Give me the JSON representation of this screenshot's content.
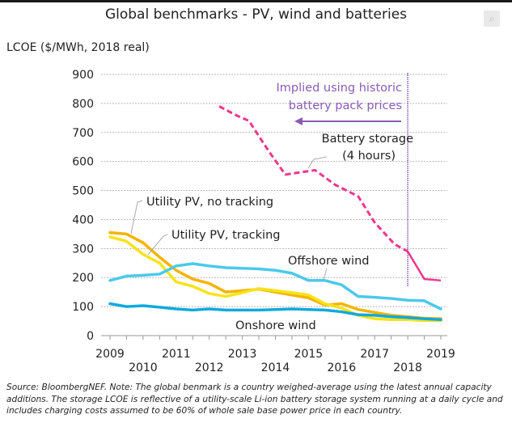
{
  "chart_data": {
    "type": "line",
    "title": "Global benchmarks - PV, wind and batteries",
    "ylabel": "LCOE ($/MWh, 2018 real)",
    "xlabel": "",
    "ylim": [
      0,
      900
    ],
    "xlim": [
      2009,
      2019
    ],
    "yticks": [
      0,
      100,
      200,
      300,
      400,
      500,
      600,
      700,
      800,
      900
    ],
    "xticks": [
      "2009",
      "2010",
      "2011",
      "2012",
      "2013",
      "2014",
      "2015",
      "2016",
      "2017",
      "2018",
      "2019"
    ],
    "grid": true,
    "series": [
      {
        "name": "Battery storage (4 hours)",
        "label": "Battery storage\n(4 hours)",
        "color": "#f0368e",
        "style": "dashed-then-solid",
        "solid_from_x": 2018.0,
        "x": [
          2012.3,
          2012.8,
          2013.2,
          2013.8,
          2014.3,
          2015.2,
          2015.8,
          2016.5,
          2017.0,
          2017.6,
          2018.0,
          2018.5,
          2019.0
        ],
        "y": [
          790,
          760,
          740,
          635,
          555,
          570,
          520,
          480,
          390,
          315,
          290,
          195,
          190
        ]
      },
      {
        "name": "Utility PV, no tracking",
        "label": "Utility PV, no tracking",
        "color": "#f5b400",
        "x": [
          2009.0,
          2009.5,
          2010.0,
          2010.5,
          2011.0,
          2011.5,
          2012.0,
          2012.5,
          2013.0,
          2013.5,
          2014.0,
          2014.5,
          2015.0,
          2015.5,
          2016.0,
          2016.5,
          2017.0,
          2017.5,
          2018.0,
          2018.5,
          2019.0
        ],
        "y": [
          355,
          350,
          320,
          270,
          225,
          195,
          180,
          150,
          155,
          160,
          150,
          140,
          130,
          105,
          110,
          90,
          80,
          70,
          65,
          60,
          58
        ]
      },
      {
        "name": "Utility PV, tracking",
        "label": "Utility PV, tracking",
        "color": "#f7e31a",
        "x": [
          2009.0,
          2009.5,
          2010.0,
          2010.5,
          2011.0,
          2011.5,
          2012.0,
          2012.5,
          2013.0,
          2013.5,
          2014.0,
          2014.5,
          2015.0,
          2015.5,
          2016.0,
          2016.5,
          2017.0,
          2017.5,
          2018.0,
          2018.5,
          2019.0
        ],
        "y": [
          340,
          325,
          280,
          250,
          185,
          170,
          145,
          135,
          148,
          162,
          155,
          148,
          140,
          110,
          95,
          70,
          58,
          55,
          55,
          52,
          52
        ]
      },
      {
        "name": "Offshore wind",
        "label": "Offshore wind",
        "color": "#4cc9eb",
        "x": [
          2009.0,
          2009.5,
          2010.0,
          2010.5,
          2011.0,
          2011.5,
          2012.0,
          2012.5,
          2013.0,
          2013.5,
          2014.0,
          2014.5,
          2015.0,
          2015.5,
          2016.0,
          2016.5,
          2017.0,
          2017.5,
          2018.0,
          2018.5,
          2019.0
        ],
        "y": [
          190,
          205,
          208,
          212,
          240,
          248,
          240,
          234,
          232,
          230,
          225,
          215,
          190,
          190,
          175,
          135,
          132,
          128,
          122,
          120,
          92
        ]
      },
      {
        "name": "Onshore wind",
        "label": "Onshore wind",
        "color": "#10a9de",
        "x": [
          2009.0,
          2009.5,
          2010.0,
          2010.5,
          2011.0,
          2011.5,
          2012.0,
          2012.5,
          2013.0,
          2013.5,
          2014.0,
          2014.5,
          2015.0,
          2015.5,
          2016.0,
          2016.5,
          2017.0,
          2017.5,
          2018.0,
          2018.5,
          2019.0
        ],
        "y": [
          110,
          100,
          103,
          98,
          92,
          88,
          92,
          88,
          88,
          88,
          90,
          92,
          90,
          88,
          82,
          72,
          70,
          65,
          62,
          58,
          55
        ]
      }
    ],
    "annotations": [
      {
        "text": "Implied using historic\nbattery pack prices",
        "color": "#8a5bb5",
        "arrow": "left",
        "marker_line_x": 2018.0
      }
    ]
  },
  "header": {
    "expand_icon": "expand-zoom-icon"
  },
  "footnote": "Source: BloombergNEF. Note: The global benmark is a country weighed-average using the latest annual capacity additions. The storage LCOE is reflective of a utility-scale Li-ion battery storage system running at a daily cycle and includes charging costs assumed to be 60% of whole sale base power price in each country."
}
